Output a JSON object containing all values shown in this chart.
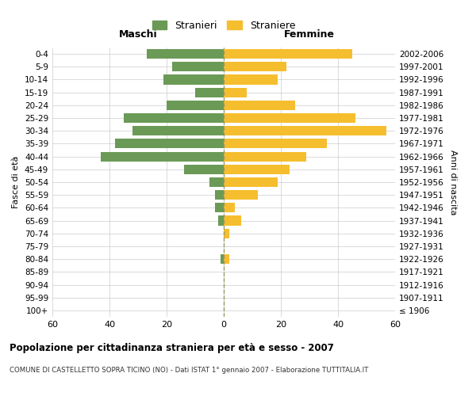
{
  "age_groups": [
    "100+",
    "95-99",
    "90-94",
    "85-89",
    "80-84",
    "75-79",
    "70-74",
    "65-69",
    "60-64",
    "55-59",
    "50-54",
    "45-49",
    "40-44",
    "35-39",
    "30-34",
    "25-29",
    "20-24",
    "15-19",
    "10-14",
    "5-9",
    "0-4"
  ],
  "birth_years": [
    "≤ 1906",
    "1907-1911",
    "1912-1916",
    "1917-1921",
    "1922-1926",
    "1927-1931",
    "1932-1936",
    "1937-1941",
    "1942-1946",
    "1947-1951",
    "1952-1956",
    "1957-1961",
    "1962-1966",
    "1967-1971",
    "1972-1976",
    "1977-1981",
    "1982-1986",
    "1987-1991",
    "1992-1996",
    "1997-2001",
    "2002-2006"
  ],
  "maschi": [
    0,
    0,
    0,
    0,
    1,
    0,
    0,
    2,
    3,
    3,
    5,
    14,
    43,
    38,
    32,
    35,
    20,
    10,
    21,
    18,
    27
  ],
  "femmine": [
    0,
    0,
    0,
    0,
    2,
    0,
    2,
    6,
    4,
    12,
    19,
    23,
    29,
    36,
    57,
    46,
    25,
    8,
    19,
    22,
    45
  ],
  "male_color": "#6a9a56",
  "female_color": "#f5be2e",
  "background_color": "#ffffff",
  "grid_color": "#cccccc",
  "title": "Popolazione per cittadinanza straniera per età e sesso - 2007",
  "subtitle": "COMUNE DI CASTELLETTO SOPRA TICINO (NO) - Dati ISTAT 1° gennaio 2007 - Elaborazione TUTTITALIA.IT",
  "xlabel_left": "Maschi",
  "xlabel_right": "Femmine",
  "ylabel_left": "Fasce di età",
  "ylabel_right": "Anni di nascita",
  "legend_male": "Stranieri",
  "legend_female": "Straniere",
  "xlim": 60
}
